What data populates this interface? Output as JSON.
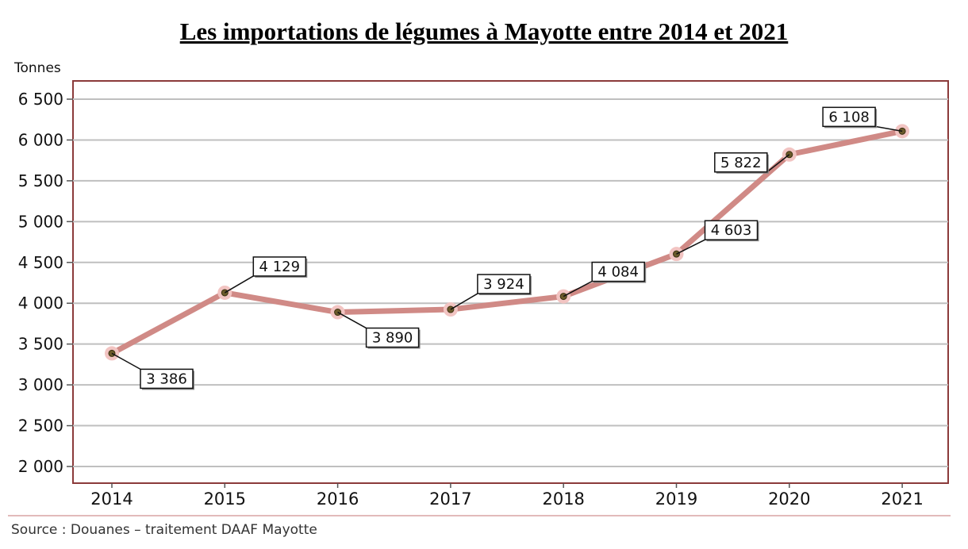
{
  "chart_data": {
    "type": "line",
    "title": "Les importations de légumes à Mayotte entre 2014 et 2021",
    "ylabel": "Tonnes",
    "xlabel": "",
    "categories": [
      "2014",
      "2015",
      "2016",
      "2017",
      "2018",
      "2019",
      "2020",
      "2021"
    ],
    "values": [
      3386,
      4129,
      3890,
      3924,
      4084,
      4603,
      5822,
      6108
    ],
    "data_labels": [
      "3 386",
      "4 129",
      "3 890",
      "3 924",
      "4 084",
      "4 603",
      "5 822",
      "6 108"
    ],
    "ylim": [
      2000,
      6500
    ],
    "yticks": [
      2000,
      2500,
      3000,
      3500,
      4000,
      4500,
      5000,
      5500,
      6000,
      6500
    ],
    "ytick_labels": [
      "2 000",
      "2 500",
      "3 000",
      "3 500",
      "4 000",
      "4 500",
      "5 000",
      "5 500",
      "6 000",
      "6 500"
    ],
    "grid": true,
    "legend": "none",
    "colors": {
      "line": "#d08a86",
      "marker_halo": "#f2c4c2",
      "marker": "#6b5a2a",
      "frame": "#8b3a3a",
      "grid": "#bfbfbf"
    },
    "source": "Source : Douanes – traitement DAAF Mayotte"
  }
}
